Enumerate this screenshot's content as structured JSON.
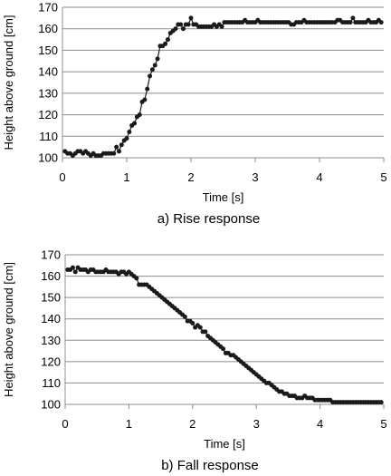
{
  "chart_data": [
    {
      "type": "line",
      "marker": "circle",
      "caption": "a) Rise response",
      "xlabel": "Time [s]",
      "ylabel": "Height above ground [cm]",
      "xlim": [
        0,
        5
      ],
      "ylim": [
        100,
        170
      ],
      "xticks": [
        "0",
        "1",
        "2",
        "3",
        "4",
        "5"
      ],
      "yticks": [
        "100",
        "110",
        "120",
        "130",
        "140",
        "150",
        "160",
        "170"
      ],
      "grid": "horizontal",
      "legend": "none",
      "series": [
        {
          "x": [
            0.04,
            0.08,
            0.12,
            0.16,
            0.2,
            0.24,
            0.28,
            0.32,
            0.36,
            0.4,
            0.44,
            0.48,
            0.52,
            0.56,
            0.6,
            0.64,
            0.68,
            0.72,
            0.76,
            0.8,
            0.84,
            0.88,
            0.92,
            0.96,
            1.0,
            1.04,
            1.08,
            1.12,
            1.16,
            1.2,
            1.24,
            1.28,
            1.32,
            1.36,
            1.4,
            1.44,
            1.48,
            1.52,
            1.56,
            1.6,
            1.64,
            1.68,
            1.72,
            1.76,
            1.8,
            1.84,
            1.88,
            1.92,
            1.96,
            2.0,
            2.04,
            2.08,
            2.12,
            2.16,
            2.2,
            2.24,
            2.28,
            2.32,
            2.36,
            2.4,
            2.44,
            2.48,
            2.52,
            2.56,
            2.6,
            2.64,
            2.68,
            2.72,
            2.76,
            2.8,
            2.84,
            2.88,
            2.92,
            2.96,
            3.0,
            3.04,
            3.08,
            3.12,
            3.16,
            3.2,
            3.24,
            3.28,
            3.32,
            3.36,
            3.4,
            3.44,
            3.48,
            3.52,
            3.56,
            3.6,
            3.64,
            3.68,
            3.72,
            3.76,
            3.8,
            3.84,
            3.88,
            3.92,
            3.96,
            4.0,
            4.04,
            4.08,
            4.12,
            4.16,
            4.2,
            4.24,
            4.28,
            4.32,
            4.36,
            4.4,
            4.44,
            4.48,
            4.52,
            4.56,
            4.6,
            4.64,
            4.68,
            4.72,
            4.76,
            4.8,
            4.84,
            4.88,
            4.92,
            4.96
          ],
          "y": [
            103,
            102,
            102,
            101,
            102,
            103,
            103,
            102,
            103,
            102,
            101,
            102,
            101,
            101,
            101,
            102,
            102,
            102,
            102,
            102,
            105,
            103,
            106,
            108,
            109,
            112,
            115,
            116,
            119,
            120,
            126,
            127,
            132,
            138,
            141,
            143,
            146,
            152,
            152,
            153,
            155,
            158,
            159,
            160,
            162,
            162,
            160,
            162,
            162,
            165,
            162,
            162,
            161,
            161,
            161,
            161,
            161,
            161,
            162,
            161,
            162,
            161,
            163,
            163,
            163,
            163,
            163,
            163,
            163,
            163,
            164,
            163,
            163,
            163,
            163,
            164,
            163,
            163,
            163,
            163,
            163,
            163,
            163,
            163,
            163,
            163,
            163,
            163,
            162,
            162,
            163,
            163,
            163,
            164,
            163,
            163,
            163,
            163,
            163,
            163,
            163,
            163,
            163,
            163,
            163,
            163,
            164,
            164,
            163,
            163,
            163,
            163,
            165,
            163,
            163,
            163,
            163,
            163,
            164,
            163,
            163,
            163,
            164,
            163
          ]
        }
      ]
    },
    {
      "type": "line",
      "marker": "circle",
      "caption": "b) Fall response",
      "xlabel": "Time [s]",
      "ylabel": "Height above ground [cm]",
      "xlim": [
        0,
        5
      ],
      "ylim": [
        100,
        170
      ],
      "xticks": [
        "0",
        "1",
        "2",
        "3",
        "4",
        "5"
      ],
      "yticks": [
        "100",
        "110",
        "120",
        "130",
        "140",
        "150",
        "160",
        "170"
      ],
      "grid": "horizontal",
      "legend": "none",
      "series": [
        {
          "x": [
            0.04,
            0.08,
            0.12,
            0.16,
            0.2,
            0.24,
            0.28,
            0.32,
            0.36,
            0.4,
            0.44,
            0.48,
            0.52,
            0.56,
            0.6,
            0.64,
            0.68,
            0.72,
            0.76,
            0.8,
            0.84,
            0.88,
            0.92,
            0.96,
            1.0,
            1.04,
            1.08,
            1.12,
            1.16,
            1.2,
            1.24,
            1.28,
            1.32,
            1.36,
            1.4,
            1.44,
            1.48,
            1.52,
            1.56,
            1.6,
            1.64,
            1.68,
            1.72,
            1.76,
            1.8,
            1.84,
            1.88,
            1.92,
            1.96,
            2.0,
            2.04,
            2.08,
            2.12,
            2.16,
            2.2,
            2.24,
            2.28,
            2.32,
            2.36,
            2.4,
            2.44,
            2.48,
            2.52,
            2.56,
            2.6,
            2.64,
            2.68,
            2.72,
            2.76,
            2.8,
            2.84,
            2.88,
            2.92,
            2.96,
            3.0,
            3.04,
            3.08,
            3.12,
            3.16,
            3.2,
            3.24,
            3.28,
            3.32,
            3.36,
            3.4,
            3.44,
            3.48,
            3.52,
            3.56,
            3.6,
            3.64,
            3.68,
            3.72,
            3.76,
            3.8,
            3.84,
            3.88,
            3.92,
            3.96,
            4.0,
            4.04,
            4.08,
            4.12,
            4.16,
            4.2,
            4.24,
            4.28,
            4.32,
            4.36,
            4.4,
            4.44,
            4.48,
            4.52,
            4.56,
            4.6,
            4.64,
            4.68,
            4.72,
            4.76,
            4.8,
            4.84,
            4.88,
            4.92,
            4.96
          ],
          "y": [
            163,
            163,
            164,
            162,
            164,
            163,
            163,
            163,
            162,
            163,
            163,
            162,
            162,
            162,
            162,
            163,
            162,
            162,
            162,
            162,
            161,
            162,
            162,
            161,
            162,
            161,
            160,
            159,
            156,
            156,
            156,
            156,
            155,
            154,
            153,
            152,
            151,
            150,
            149,
            148,
            147,
            146,
            145,
            144,
            143,
            142,
            141,
            139,
            139,
            138,
            136,
            137,
            136,
            134,
            134,
            132,
            131,
            130,
            129,
            128,
            127,
            126,
            124,
            124,
            123,
            123,
            122,
            121,
            120,
            119,
            118,
            117,
            116,
            115,
            114,
            113,
            112,
            111,
            110,
            110,
            109,
            108,
            107,
            106,
            106,
            105,
            105,
            104,
            104,
            104,
            103,
            103,
            103,
            104,
            103,
            103,
            103,
            102,
            102,
            102,
            102,
            102,
            102,
            102,
            101,
            101,
            101,
            101,
            101,
            101,
            101,
            101,
            101,
            101,
            101,
            101,
            101,
            101,
            101,
            101,
            101,
            101,
            101,
            101
          ]
        }
      ]
    }
  ]
}
